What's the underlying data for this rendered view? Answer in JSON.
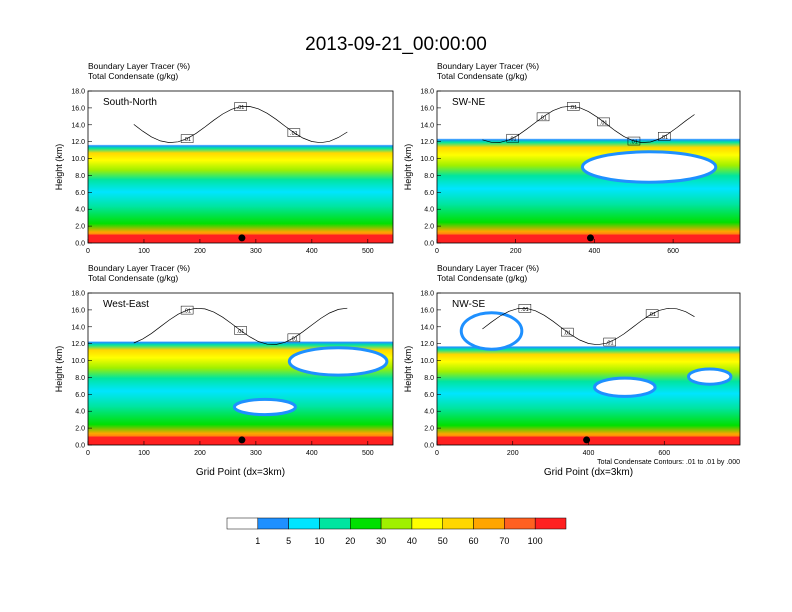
{
  "title": "2013-09-21_00:00:00",
  "colorbar": {
    "labels": [
      "1",
      "5",
      "10",
      "20",
      "30",
      "40",
      "50",
      "60",
      "70",
      "100"
    ],
    "colors": [
      "#ffffff",
      "#1e90ff",
      "#00e5ff",
      "#00e5a0",
      "#00e000",
      "#a0f000",
      "#ffff00",
      "#ffd700",
      "#ffa500",
      "#ff6020",
      "#ff2020"
    ]
  },
  "contour_note": "Total Condensate Contours: .01 to .01 by .000",
  "chart_data": [
    {
      "type": "heatmap",
      "title": "South-North",
      "header": [
        "Boundary Layer Tracer   (%)",
        "Total Condensate   (g/kg)"
      ],
      "ylabel": "Height (km)",
      "xlabel": "",
      "xlim": [
        0,
        545
      ],
      "ylim": [
        0,
        18
      ],
      "xticks": [
        "0",
        "100",
        "200",
        "300",
        "400",
        "500"
      ],
      "yticks": [
        "0.0",
        "2.0",
        "4.0",
        "6.0",
        "8.0",
        "10.0",
        "12.0",
        "14.0",
        "16.0",
        "18.0"
      ],
      "cloud_top_km": 14.4,
      "contour_labels": [
        ".01",
        ".01",
        ".01"
      ],
      "marker_x": 275
    },
    {
      "type": "heatmap",
      "title": "SW-NE",
      "header": [
        "Boundary Layer Tracer   (%)",
        "Total Condensate   (g/kg)"
      ],
      "ylabel": "Height (km)",
      "xlabel": "",
      "xlim": [
        0,
        770
      ],
      "ylim": [
        0,
        18
      ],
      "xticks": [
        "0",
        "200",
        "400",
        "600"
      ],
      "yticks": [
        "0.0",
        "2.0",
        "4.0",
        "6.0",
        "8.0",
        "10.0",
        "12.0",
        "14.0",
        "16.0",
        "18.0"
      ],
      "cloud_top_km": 15.3,
      "contour_labels": [
        ".01",
        ".01",
        ".01",
        ".01",
        ".01",
        ".01"
      ],
      "marker_x": 390
    },
    {
      "type": "heatmap",
      "title": "West-East",
      "header": [
        "Boundary Layer Tracer   (%)",
        "Total Condensate   (g/kg)"
      ],
      "ylabel": "Height (km)",
      "xlabel": "Grid Point (dx=3km)",
      "xlim": [
        0,
        545
      ],
      "ylim": [
        0,
        18
      ],
      "xticks": [
        "0",
        "100",
        "200",
        "300",
        "400",
        "500"
      ],
      "yticks": [
        "0.0",
        "2.0",
        "4.0",
        "6.0",
        "8.0",
        "10.0",
        "12.0",
        "14.0",
        "16.0",
        "18.0"
      ],
      "cloud_top_km": 15.2,
      "contour_labels": [
        ".01",
        ".01",
        ".01"
      ],
      "marker_x": 275
    },
    {
      "type": "heatmap",
      "title": "NW-SE",
      "header": [
        "Boundary Layer Tracer   (%)",
        "Total Condensate   (g/kg)"
      ],
      "ylabel": "Height (km)",
      "xlabel": "Grid Point (dx=3km)",
      "xlim": [
        0,
        800
      ],
      "ylim": [
        0,
        18
      ],
      "xticks": [
        "0",
        "200",
        "400",
        "600"
      ],
      "yticks": [
        "0.0",
        "2.0",
        "4.0",
        "6.0",
        "8.0",
        "10.0",
        "12.0",
        "14.0",
        "16.0",
        "18.0"
      ],
      "cloud_top_km": 14.5,
      "contour_labels": [
        ".01",
        ".01",
        ".01",
        ".01"
      ],
      "marker_x": 395
    }
  ]
}
